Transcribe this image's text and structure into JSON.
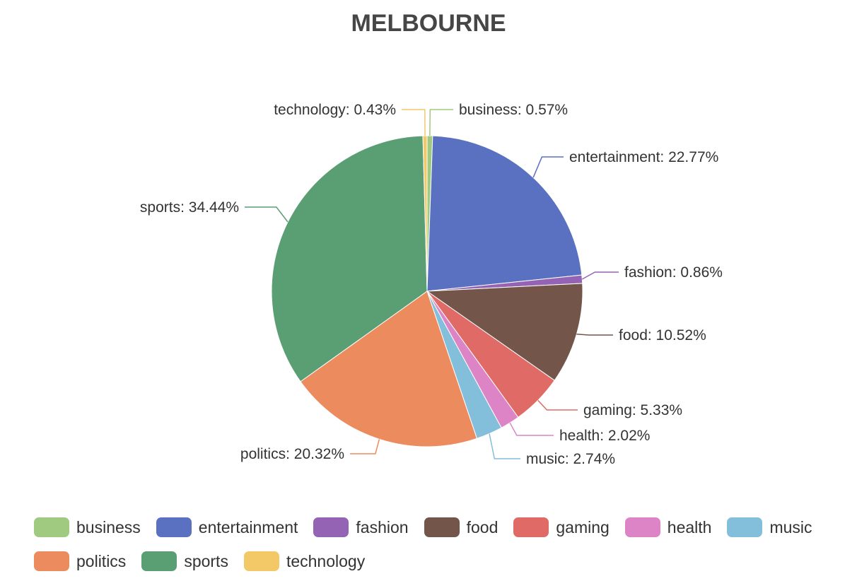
{
  "chart_data": {
    "type": "pie",
    "title": "MELBOURNE",
    "categories": [
      "business",
      "entertainment",
      "fashion",
      "food",
      "gaming",
      "health",
      "music",
      "politics",
      "sports",
      "technology"
    ],
    "values": [
      0.57,
      22.77,
      0.86,
      10.52,
      5.33,
      2.02,
      2.74,
      20.32,
      34.44,
      0.43
    ],
    "labels": [
      "business: 0.57%",
      "entertainment: 22.77%",
      "fashion: 0.86%",
      "food: 10.52%",
      "gaming: 5.33%",
      "health: 2.02%",
      "music: 2.74%",
      "politics: 20.32%",
      "sports: 34.44%",
      "technology: 0.43%"
    ],
    "colors": [
      "#9fca7f",
      "#5a70c0",
      "#9563b4",
      "#73554a",
      "#e06b66",
      "#dd84c6",
      "#83bedb",
      "#ec8b5e",
      "#5a9e74",
      "#f3c968"
    ],
    "legend_position": "bottom",
    "legend": {
      "rows": [
        [
          "business",
          "entertainment",
          "fashion",
          "food",
          "gaming",
          "health",
          "music"
        ],
        [
          "politics",
          "sports",
          "technology"
        ]
      ]
    }
  }
}
